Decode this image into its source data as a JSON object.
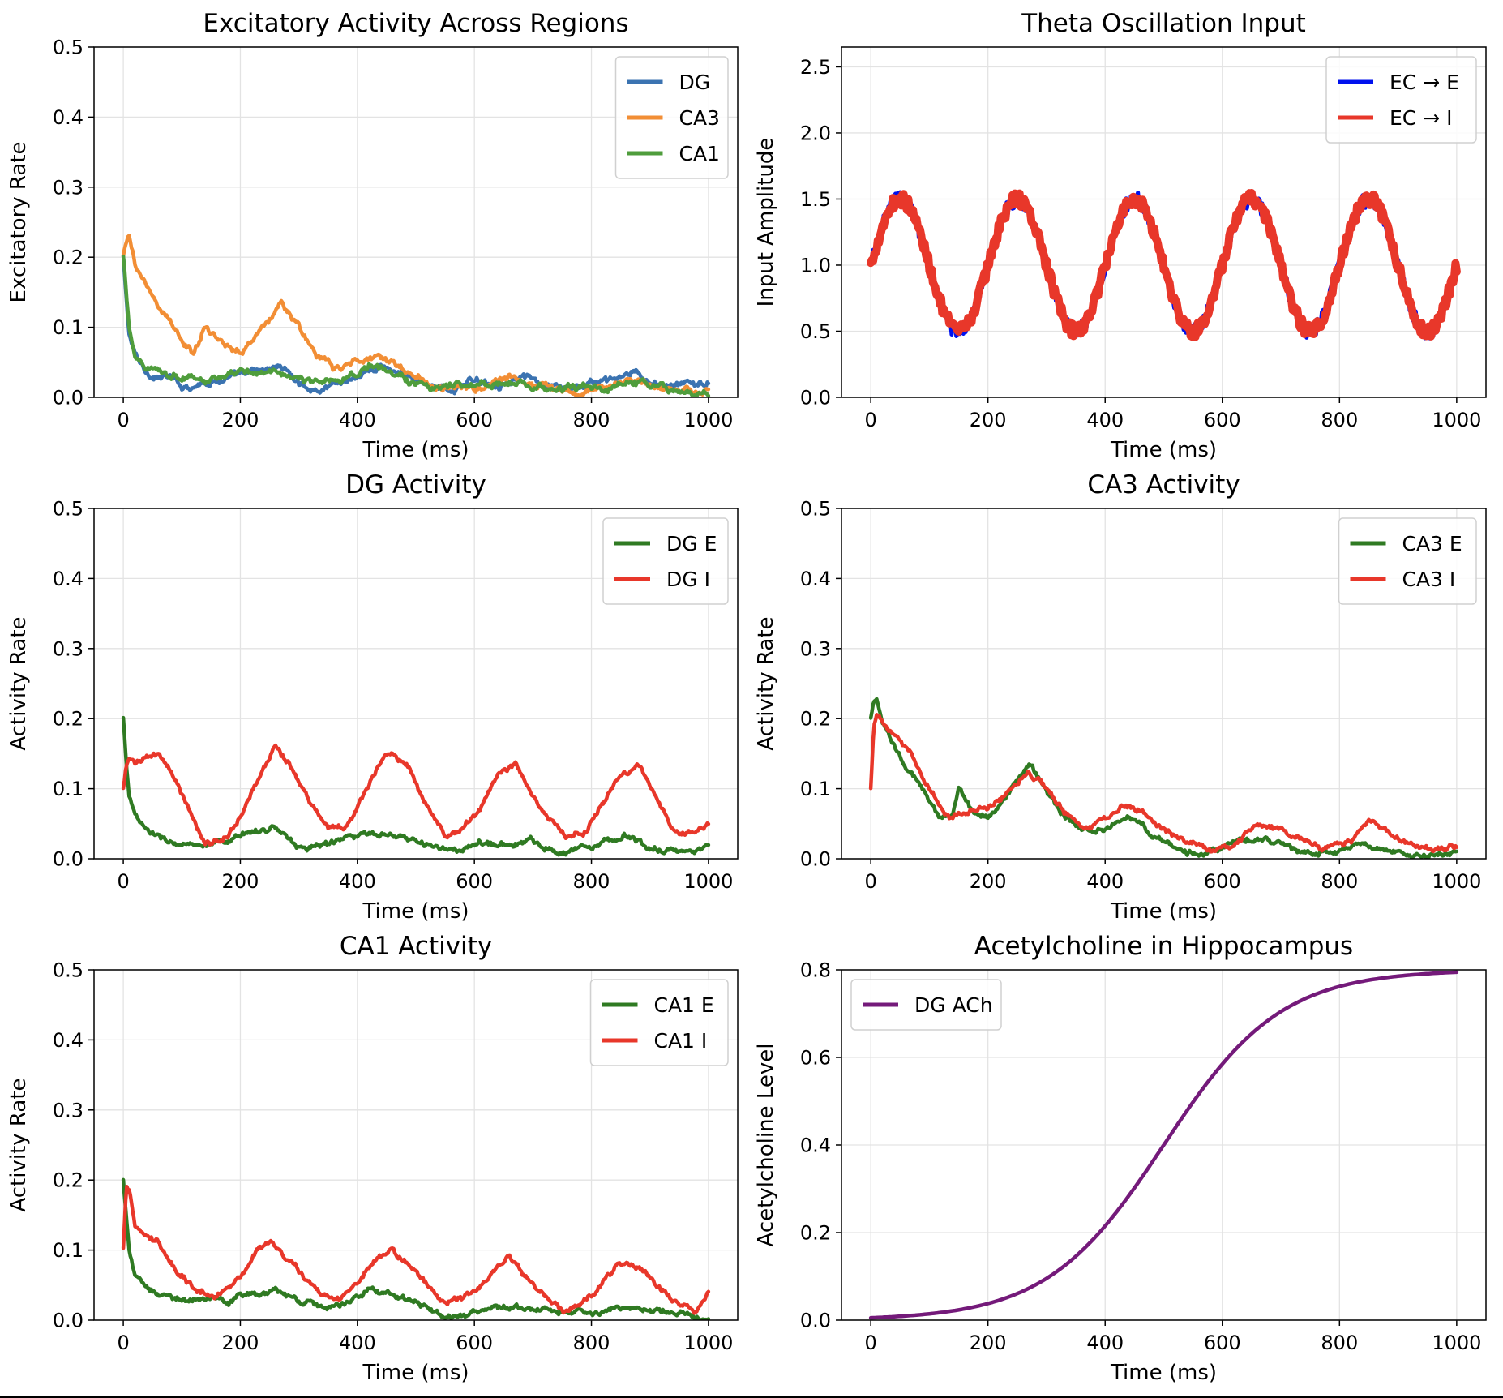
{
  "colors": {
    "dg_blue": "#3b73b1",
    "ca3_orange": "#f28e35",
    "ca1_green": "#4f9d3c",
    "e_green": "#2f7a22",
    "i_red": "#e8372a",
    "ec_blue": "#0011ee",
    "ach_purple": "#741a7a",
    "grid": "#e3e3e3"
  },
  "chart_data": [
    {
      "type": "line",
      "title": "Excitatory Activity Across Regions",
      "xlabel": "Time (ms)",
      "ylabel": "Excitatory Rate",
      "xlim": [
        -50,
        1050
      ],
      "ylim": [
        0,
        0.5
      ],
      "xticks": [
        "0",
        "200",
        "400",
        "600",
        "800",
        "1000"
      ],
      "yticks": [
        "0.0",
        "0.1",
        "0.2",
        "0.3",
        "0.4",
        "0.5"
      ],
      "grid": true,
      "legend": "top-right",
      "series": [
        {
          "name": "DG",
          "color": "dg_blue",
          "noise": 0.006,
          "x": [
            0,
            5,
            10,
            20,
            40,
            60,
            80,
            100,
            130,
            160,
            200,
            240,
            270,
            300,
            330,
            360,
            400,
            440,
            480,
            520,
            560,
            600,
            640,
            680,
            720,
            760,
            800,
            840,
            870,
            900,
            940,
            970,
            1000
          ],
          "y": [
            0.2,
            0.14,
            0.09,
            0.06,
            0.035,
            0.03,
            0.028,
            0.015,
            0.02,
            0.025,
            0.03,
            0.04,
            0.045,
            0.02,
            0.01,
            0.02,
            0.03,
            0.045,
            0.03,
            0.02,
            0.01,
            0.025,
            0.02,
            0.03,
            0.015,
            0.01,
            0.02,
            0.025,
            0.035,
            0.02,
            0.015,
            0.02,
            0.02
          ]
        },
        {
          "name": "CA3",
          "color": "ca3_orange",
          "noise": 0.006,
          "x": [
            0,
            5,
            10,
            20,
            40,
            60,
            80,
            100,
            120,
            140,
            160,
            200,
            240,
            270,
            300,
            330,
            360,
            400,
            430,
            460,
            500,
            540,
            580,
            620,
            660,
            700,
            740,
            780,
            820,
            860,
            900,
            940,
            980,
            1000
          ],
          "y": [
            0.2,
            0.22,
            0.225,
            0.19,
            0.16,
            0.13,
            0.11,
            0.08,
            0.06,
            0.1,
            0.08,
            0.065,
            0.1,
            0.135,
            0.1,
            0.06,
            0.04,
            0.05,
            0.06,
            0.05,
            0.03,
            0.015,
            0.01,
            0.015,
            0.03,
            0.02,
            0.01,
            0.005,
            0.015,
            0.025,
            0.015,
            0.01,
            0.005,
            0.01
          ]
        },
        {
          "name": "CA1",
          "color": "ca1_green",
          "noise": 0.006,
          "x": [
            0,
            5,
            10,
            20,
            40,
            60,
            80,
            100,
            140,
            180,
            220,
            260,
            300,
            340,
            380,
            420,
            460,
            500,
            540,
            580,
            620,
            660,
            700,
            740,
            780,
            820,
            860,
            900,
            940,
            980,
            1000
          ],
          "y": [
            0.2,
            0.15,
            0.1,
            0.06,
            0.045,
            0.04,
            0.035,
            0.03,
            0.025,
            0.03,
            0.035,
            0.04,
            0.025,
            0.02,
            0.03,
            0.045,
            0.035,
            0.02,
            0.015,
            0.02,
            0.015,
            0.02,
            0.015,
            0.01,
            0.015,
            0.01,
            0.02,
            0.015,
            0.01,
            0.005,
            0.005
          ]
        }
      ]
    },
    {
      "type": "line",
      "title": "Theta Oscillation Input",
      "xlabel": "Time (ms)",
      "ylabel": "Input Amplitude",
      "xlim": [
        -50,
        1050
      ],
      "ylim": [
        0,
        2.65
      ],
      "xticks": [
        "0",
        "200",
        "400",
        "600",
        "800",
        "1000"
      ],
      "yticks": [
        "0.0",
        "0.5",
        "1.0",
        "1.5",
        "2.0",
        "2.5"
      ],
      "grid": true,
      "legend": "top-right",
      "series": [
        {
          "name": "EC → E",
          "color": "ec_blue",
          "width": 5,
          "noise": 0.06,
          "sine": {
            "base": 1.0,
            "amp": 0.5,
            "period": 200,
            "start": 0,
            "end": 1000
          }
        },
        {
          "name": "EC → I",
          "color": "i_red",
          "width": 10,
          "noise": 0.05,
          "sine": {
            "base": 1.0,
            "amp": 0.5,
            "period": 200,
            "start": 0,
            "end": 1000
          }
        }
      ]
    },
    {
      "type": "line",
      "title": "DG Activity",
      "xlabel": "Time (ms)",
      "ylabel": "Activity Rate",
      "xlim": [
        -50,
        1050
      ],
      "ylim": [
        0,
        0.5
      ],
      "xticks": [
        "0",
        "200",
        "400",
        "600",
        "800",
        "1000"
      ],
      "yticks": [
        "0.0",
        "0.1",
        "0.2",
        "0.3",
        "0.4",
        "0.5"
      ],
      "grid": true,
      "legend": "top-right",
      "series": [
        {
          "name": "DG E",
          "color": "e_green",
          "noise": 0.005,
          "x": [
            0,
            5,
            10,
            20,
            40,
            60,
            80,
            100,
            140,
            180,
            220,
            260,
            300,
            340,
            380,
            420,
            460,
            500,
            540,
            580,
            620,
            660,
            700,
            740,
            780,
            820,
            860,
            900,
            940,
            980,
            1000
          ],
          "y": [
            0.2,
            0.14,
            0.09,
            0.06,
            0.04,
            0.03,
            0.025,
            0.02,
            0.015,
            0.025,
            0.04,
            0.045,
            0.015,
            0.02,
            0.03,
            0.035,
            0.03,
            0.025,
            0.015,
            0.01,
            0.025,
            0.02,
            0.025,
            0.01,
            0.015,
            0.025,
            0.035,
            0.015,
            0.01,
            0.01,
            0.02
          ]
        },
        {
          "name": "DG I",
          "color": "i_red",
          "noise": 0.005,
          "x": [
            0,
            5,
            10,
            20,
            40,
            60,
            80,
            100,
            120,
            140,
            160,
            180,
            200,
            230,
            260,
            290,
            320,
            350,
            380,
            410,
            440,
            460,
            490,
            520,
            550,
            580,
            610,
            640,
            670,
            700,
            730,
            760,
            790,
            820,
            850,
            880,
            910,
            940,
            970,
            1000
          ],
          "y": [
            0.1,
            0.13,
            0.14,
            0.14,
            0.145,
            0.15,
            0.125,
            0.09,
            0.055,
            0.02,
            0.025,
            0.035,
            0.06,
            0.11,
            0.16,
            0.13,
            0.075,
            0.045,
            0.045,
            0.09,
            0.14,
            0.155,
            0.13,
            0.075,
            0.035,
            0.045,
            0.07,
            0.12,
            0.135,
            0.09,
            0.055,
            0.03,
            0.04,
            0.08,
            0.12,
            0.135,
            0.09,
            0.04,
            0.035,
            0.05
          ]
        }
      ]
    },
    {
      "type": "line",
      "title": "CA3 Activity",
      "xlabel": "Time (ms)",
      "ylabel": "Activity Rate",
      "xlim": [
        -50,
        1050
      ],
      "ylim": [
        0,
        0.5
      ],
      "xticks": [
        "0",
        "200",
        "400",
        "600",
        "800",
        "1000"
      ],
      "yticks": [
        "0.0",
        "0.1",
        "0.2",
        "0.3",
        "0.4",
        "0.5"
      ],
      "grid": true,
      "legend": "top-right",
      "series": [
        {
          "name": "CA3 E",
          "color": "e_green",
          "noise": 0.005,
          "x": [
            0,
            5,
            10,
            20,
            40,
            60,
            80,
            100,
            120,
            140,
            150,
            170,
            200,
            230,
            270,
            300,
            330,
            360,
            400,
            440,
            480,
            520,
            560,
            600,
            640,
            680,
            720,
            760,
            800,
            840,
            880,
            920,
            960,
            1000
          ],
          "y": [
            0.2,
            0.22,
            0.225,
            0.19,
            0.16,
            0.13,
            0.11,
            0.08,
            0.055,
            0.065,
            0.1,
            0.07,
            0.06,
            0.09,
            0.135,
            0.1,
            0.06,
            0.04,
            0.045,
            0.06,
            0.035,
            0.015,
            0.005,
            0.015,
            0.03,
            0.025,
            0.015,
            0.005,
            0.01,
            0.02,
            0.01,
            0.005,
            0.005,
            0.01
          ]
        },
        {
          "name": "CA3 I",
          "color": "i_red",
          "noise": 0.005,
          "x": [
            0,
            5,
            10,
            20,
            40,
            60,
            80,
            100,
            120,
            140,
            160,
            200,
            240,
            270,
            300,
            330,
            360,
            400,
            430,
            460,
            500,
            540,
            580,
            620,
            660,
            700,
            740,
            780,
            820,
            850,
            880,
            920,
            960,
            1000
          ],
          "y": [
            0.1,
            0.19,
            0.21,
            0.2,
            0.18,
            0.16,
            0.13,
            0.1,
            0.075,
            0.055,
            0.065,
            0.07,
            0.1,
            0.125,
            0.1,
            0.065,
            0.045,
            0.055,
            0.075,
            0.07,
            0.045,
            0.025,
            0.01,
            0.02,
            0.05,
            0.045,
            0.025,
            0.015,
            0.025,
            0.06,
            0.04,
            0.02,
            0.015,
            0.015
          ]
        }
      ]
    },
    {
      "type": "line",
      "title": "CA1 Activity",
      "xlabel": "Time (ms)",
      "ylabel": "Activity Rate",
      "xlim": [
        -50,
        1050
      ],
      "ylim": [
        0,
        0.5
      ],
      "xticks": [
        "0",
        "200",
        "400",
        "600",
        "800",
        "1000"
      ],
      "yticks": [
        "0.0",
        "0.1",
        "0.2",
        "0.3",
        "0.4",
        "0.5"
      ],
      "grid": true,
      "legend": "top-right",
      "series": [
        {
          "name": "CA1 E",
          "color": "e_green",
          "noise": 0.005,
          "x": [
            0,
            5,
            10,
            20,
            40,
            60,
            80,
            100,
            140,
            180,
            220,
            260,
            300,
            340,
            380,
            420,
            460,
            500,
            540,
            580,
            620,
            660,
            700,
            740,
            780,
            820,
            860,
            900,
            940,
            980,
            1000
          ],
          "y": [
            0.2,
            0.15,
            0.1,
            0.06,
            0.045,
            0.04,
            0.035,
            0.03,
            0.03,
            0.025,
            0.04,
            0.04,
            0.025,
            0.02,
            0.025,
            0.045,
            0.035,
            0.025,
            0.01,
            0.005,
            0.015,
            0.02,
            0.015,
            0.01,
            0.015,
            0.01,
            0.02,
            0.015,
            0.01,
            0.005,
            0.005
          ]
        },
        {
          "name": "CA1 I",
          "color": "i_red",
          "noise": 0.005,
          "x": [
            0,
            5,
            10,
            20,
            40,
            60,
            80,
            100,
            130,
            160,
            200,
            230,
            250,
            280,
            310,
            340,
            370,
            400,
            430,
            460,
            490,
            520,
            550,
            580,
            610,
            640,
            660,
            690,
            720,
            750,
            780,
            810,
            840,
            860,
            890,
            920,
            950,
            980,
            1000
          ],
          "y": [
            0.1,
            0.19,
            0.185,
            0.14,
            0.12,
            0.11,
            0.085,
            0.065,
            0.04,
            0.035,
            0.06,
            0.1,
            0.11,
            0.09,
            0.06,
            0.035,
            0.03,
            0.05,
            0.09,
            0.1,
            0.075,
            0.05,
            0.025,
            0.03,
            0.05,
            0.075,
            0.095,
            0.06,
            0.035,
            0.015,
            0.02,
            0.045,
            0.075,
            0.085,
            0.07,
            0.045,
            0.02,
            0.01,
            0.04
          ]
        }
      ]
    },
    {
      "type": "line",
      "title": "Acetylcholine in Hippocampus",
      "xlabel": "Time (ms)",
      "ylabel": "Acetylcholine Level",
      "xlim": [
        -50,
        1050
      ],
      "ylim": [
        0,
        0.8
      ],
      "xticks": [
        "0",
        "200",
        "400",
        "600",
        "800",
        "1000"
      ],
      "yticks": [
        "0.0",
        "0.2",
        "0.4",
        "0.6",
        "0.8"
      ],
      "grid": true,
      "legend": "top-left",
      "series": [
        {
          "name": "DG ACh",
          "color": "ach_purple",
          "noise": 0,
          "sigmoid": {
            "max": 0.8,
            "mid": 500,
            "scale": 100,
            "start": 0,
            "end": 1000
          }
        }
      ]
    }
  ]
}
